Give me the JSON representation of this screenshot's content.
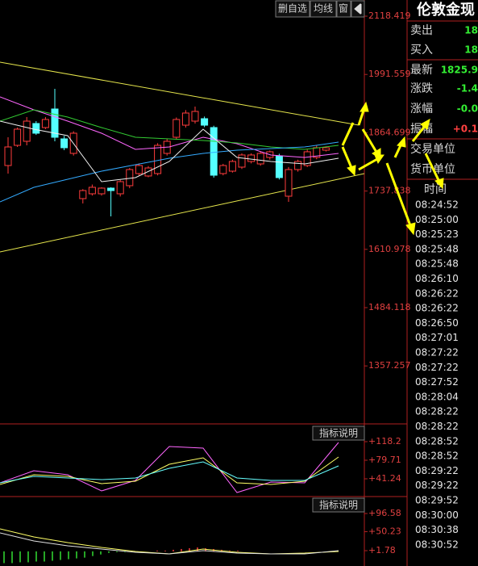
{
  "chart_data": [
    {
      "type": "candlestick",
      "up_color": "#ff3c3c",
      "down_color": "#54ffff",
      "grid": false,
      "ylim": [
        1231.1,
        2153.6
      ],
      "yticks": [
        2118.419,
        1991.559,
        1864.699,
        1737.838,
        1610.978,
        1484.118,
        1357.257
      ],
      "open": [
        1793.4,
        1837.3,
        1846.1,
        1884.8,
        1876.0,
        1916.4,
        1851.4,
        1819.8,
        1721.4,
        1731.9,
        1731.9,
        1744.2,
        1731.9,
        1749.5,
        1775.9,
        1770.6,
        1775.9,
        1819.8,
        1854.9,
        1881.2,
        1890.0,
        1895.3,
        1876.0,
        1775.9,
        1781.1,
        1789.9,
        1802.2,
        1796.9,
        1811.0,
        1814.5,
        1726.6,
        1784.6,
        1793.4,
        1811.0,
        1826.8
      ],
      "high": [
        1854.9,
        1876.0,
        1898.9,
        1890.0,
        1898.9,
        1960.3,
        1858.0,
        1868.0,
        1742.0,
        1752.0,
        1746.0,
        1746.0,
        1762.0,
        1788.0,
        1798.0,
        1792.0,
        1842.0,
        1852.0,
        1898.0,
        1914.0,
        1921.7,
        1900.0,
        1880.0,
        1797.0,
        1806.0,
        1820.0,
        1820.0,
        1824.0,
        1826.0,
        1819.0,
        1790.0,
        1806.0,
        1828.0,
        1837.0,
        1835.0
      ],
      "low": [
        1775.9,
        1833.8,
        1837.3,
        1860.0,
        1872.5,
        1846.1,
        1826.8,
        1815.0,
        1710.8,
        1728.0,
        1728.0,
        1682.7,
        1726.0,
        1744.0,
        1772.0,
        1768.0,
        1772.0,
        1815.0,
        1850.0,
        1876.0,
        1884.8,
        1877.0,
        1767.1,
        1772.0,
        1778.0,
        1786.0,
        1798.0,
        1793.0,
        1806.0,
        1763.0,
        1714.3,
        1780.0,
        1790.0,
        1807.0,
        1824.0
      ],
      "close": [
        1833.8,
        1872.5,
        1890.0,
        1863.7,
        1893.6,
        1854.9,
        1832.1,
        1863.7,
        1738.9,
        1746.0,
        1744.2,
        1738.9,
        1758.3,
        1784.6,
        1793.4,
        1788.1,
        1837.3,
        1846.1,
        1893.6,
        1907.6,
        1911.1,
        1881.2,
        1772.3,
        1793.4,
        1802.2,
        1816.3,
        1816.3,
        1819.8,
        1823.3,
        1767.1,
        1784.6,
        1802.2,
        1823.3,
        1832.1,
        1832.1
      ],
      "series": [
        {
          "color": "#ff66ff",
          "values": [
            1942.8,
            1914.6,
            1890.0,
            1863.7,
            1828.6,
            1833.8,
            1854.9,
            1840.9,
            1816.3,
            1811.0,
            1819.8
          ]
        },
        {
          "color": "#33cc33",
          "values": [
            1890.0,
            1914.6,
            1898.9,
            1876.0,
            1854.9,
            1851.4,
            1847.9,
            1842.6,
            1833.8,
            1828.6,
            1837.3
          ]
        },
        {
          "color": "#33aaff",
          "values": [
            1714.3,
            1746.0,
            1763.5,
            1781.1,
            1795.2,
            1809.2,
            1819.8,
            1826.8,
            1830.3,
            1833.8,
            1844.4
          ]
        },
        {
          "color": "#f0f0f0",
          "values": [
            1890.0,
            1872.5,
            1858.4,
            1758.3,
            1767.1,
            1802.2,
            1872.5,
            1811.0,
            1802.2,
            1796.9,
            1809.2
          ]
        }
      ]
    },
    {
      "type": "line",
      "ylim": [
        4.43,
        151.66
      ],
      "yticks": [
        {
          "value": 118.2,
          "label": "+118.2"
        },
        {
          "value": 79.71,
          "label": "+79.71"
        },
        {
          "value": 41.24,
          "label": "+41.24"
        }
      ],
      "series": [
        {
          "color": "#ff66ff",
          "values": [
            32.9,
            58.0,
            49.6,
            16.2,
            37.9,
            108.2,
            104.8,
            12.8,
            34.6,
            32.9,
            116.5
          ]
        },
        {
          "color": "#ffff66",
          "values": [
            29.5,
            49.6,
            46.3,
            31.2,
            36.2,
            71.4,
            84.7,
            32.9,
            29.5,
            36.2,
            86.4
          ]
        },
        {
          "color": "#66ffff",
          "values": [
            32.9,
            46.3,
            42.9,
            39.6,
            42.9,
            63.0,
            76.4,
            42.9,
            37.9,
            37.9,
            68.0
          ]
        }
      ]
    },
    {
      "type": "line",
      "ylim": [
        -37.38,
        135.74
      ],
      "up_color": "#ff3c3c",
      "down_color": "#33dd33",
      "yticks": [
        {
          "value": 96.58,
          "label": "+96.58"
        },
        {
          "value": 50.23,
          "label": "+50.23"
        },
        {
          "value": 1.78,
          "label": "+1.78"
        }
      ],
      "bars": [
        -30,
        -30,
        -28,
        -28,
        -26,
        -26,
        -24,
        -22,
        -20,
        -18,
        -16,
        -12,
        -8,
        -4,
        -2,
        -2,
        0,
        0,
        0,
        2,
        2,
        4,
        6,
        8,
        10,
        8,
        6,
        4,
        2,
        2,
        0,
        0,
        0,
        0,
        0,
        0,
        0,
        0,
        0,
        0,
        0,
        0
      ],
      "series": [
        {
          "color": "#ffff66",
          "values": [
            57.4,
            36.8,
            22.4,
            10.0,
            -0.3,
            -6.5,
            5.9,
            -2.3,
            -6.5,
            -4.4,
            -0.3
          ]
        },
        {
          "color": "#e0e0e0",
          "values": [
            47.1,
            26.5,
            14.2,
            5.9,
            -2.3,
            -6.5,
            1.8,
            -4.4,
            -6.5,
            -6.5,
            1.8
          ]
        }
      ]
    }
  ],
  "toolbar": [
    "删自选",
    "均线",
    "窗"
  ],
  "indicator_buttons": [
    "指标说明",
    "指标说明"
  ],
  "quote": {
    "title": "伦敦金现",
    "rows": [
      [
        "卖出",
        "18"
      ],
      [
        "买入",
        "18"
      ],
      [
        "最新",
        "1825.9"
      ],
      [
        "涨跌",
        "-1.4"
      ],
      [
        "涨幅",
        "-0.0"
      ],
      [
        "振幅",
        "+0.1"
      ],
      [
        "交易单位",
        ""
      ],
      [
        "货币单位",
        ""
      ]
    ],
    "time_header": "时间",
    "times": [
      "08:24:52",
      "08:25:00",
      "08:25:23",
      "08:25:48",
      "08:25:48",
      "08:26:10",
      "08:26:22",
      "08:26:22",
      "08:26:50",
      "08:27:01",
      "08:27:22",
      "08:27:22",
      "08:27:52",
      "08:28:04",
      "08:28:22",
      "08:28:22",
      "08:28:52",
      "08:28:52",
      "08:29:22",
      "08:29:22",
      "08:29:52",
      "08:30:00",
      "08:30:38",
      "08:30:52"
    ]
  }
}
